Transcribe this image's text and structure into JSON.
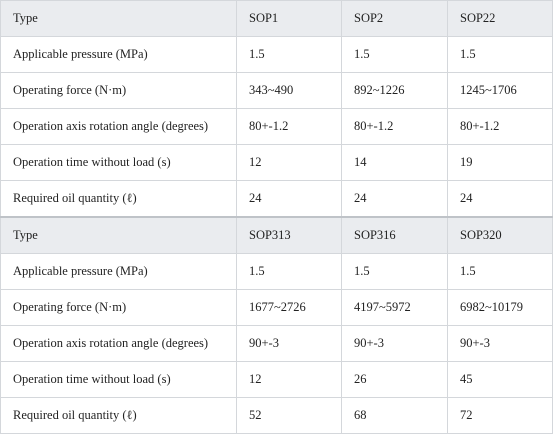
{
  "tables": [
    {
      "header": [
        "Type",
        "SOP1",
        "SOP2",
        "SOP22"
      ],
      "rows": [
        [
          "Applicable pressure (MPa)",
          "1.5",
          "1.5",
          "1.5"
        ],
        [
          "Operating force (N·m)",
          "343~490",
          "892~1226",
          "1245~1706"
        ],
        [
          "Operation axis rotation angle (degrees)",
          "80+-1.2",
          "80+-1.2",
          "80+-1.2"
        ],
        [
          "Operation time without load (s)",
          "12",
          "14",
          "19"
        ],
        [
          "Required oil quantity (ℓ)",
          "24",
          "24",
          "24"
        ]
      ]
    },
    {
      "header": [
        "Type",
        "SOP313",
        "SOP316",
        "SOP320"
      ],
      "rows": [
        [
          "Applicable pressure (MPa)",
          "1.5",
          "1.5",
          "1.5"
        ],
        [
          "Operating force (N·m)",
          "1677~2726",
          "4197~5972",
          "6982~10179"
        ],
        [
          "Operation axis rotation angle (degrees)",
          "90+-3",
          "90+-3",
          "90+-3"
        ],
        [
          "Operation time without load (s)",
          "12",
          "26",
          "45"
        ],
        [
          "Required oil quantity (ℓ)",
          "52",
          "68",
          "72"
        ]
      ]
    }
  ]
}
